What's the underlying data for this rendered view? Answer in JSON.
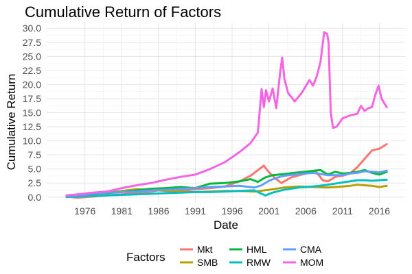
{
  "chart_data": {
    "type": "line",
    "title": "Cumulative Return of Factors",
    "xlabel": "Date",
    "ylabel": "Cumulative Return",
    "x_ticks": [
      "1976",
      "1981",
      "1986",
      "1991",
      "1996",
      "2001",
      "2006",
      "2011",
      "2016"
    ],
    "y_ticks": [
      "0.0",
      "2.5",
      "5.0",
      "7.5",
      "10.0",
      "12.5",
      "15.0",
      "17.5",
      "20.0",
      "22.5",
      "25.0",
      "27.5",
      "30.0"
    ],
    "xlim": [
      1970.8,
      2019.5
    ],
    "ylim": [
      -1.0,
      31.0
    ],
    "grid": true,
    "legend": {
      "title": "Factors",
      "position": "bottom",
      "entries": [
        "Mkt",
        "SMB",
        "HML",
        "RMW",
        "CMA",
        "MOM"
      ]
    },
    "series": [
      {
        "name": "Mkt",
        "color": "#F8766D",
        "x": [
          1973.5,
          1975,
          1977,
          1979,
          1981,
          1983,
          1985,
          1987,
          1987.8,
          1989,
          1991,
          1993,
          1995,
          1997,
          1998.5,
          1999.5,
          2000.3,
          2001,
          2002,
          2002.7,
          2004,
          2006,
          2007.3,
          2008.3,
          2009,
          2010,
          2011,
          2012,
          2013,
          2014,
          2015,
          2016,
          2016.5,
          2017
        ],
        "y": [
          0.1,
          -0.1,
          0.1,
          0.3,
          0.5,
          0.7,
          1.0,
          1.4,
          0.9,
          1.2,
          1.4,
          1.6,
          1.9,
          2.8,
          3.8,
          4.8,
          5.6,
          4.4,
          3.2,
          2.5,
          3.5,
          4.2,
          4.7,
          3.0,
          2.8,
          3.6,
          3.8,
          4.2,
          5.3,
          6.8,
          8.3,
          8.6,
          9.0,
          9.4
        ]
      },
      {
        "name": "SMB",
        "color": "#B79F00",
        "x": [
          1973.5,
          1975,
          1977,
          1979,
          1981,
          1983,
          1985,
          1987,
          1989,
          1991,
          1993,
          1995,
          1997,
          1999,
          2001,
          2003,
          2005,
          2007,
          2009,
          2011,
          2012,
          2013,
          2014,
          2015,
          2016,
          2017
        ],
        "y": [
          0.1,
          0.2,
          0.5,
          0.8,
          1.1,
          1.4,
          1.3,
          1.1,
          1.0,
          0.9,
          1.0,
          1.1,
          1.1,
          1.0,
          1.3,
          1.7,
          1.9,
          1.8,
          1.7,
          1.9,
          2.0,
          2.2,
          2.1,
          2.0,
          1.8,
          2.0
        ]
      },
      {
        "name": "HML",
        "color": "#00BA38",
        "x": [
          1973.5,
          1975,
          1977,
          1979,
          1981,
          1983,
          1985,
          1987,
          1989,
          1991,
          1993,
          1995,
          1997,
          1998.5,
          1999.5,
          2000.5,
          2001.5,
          2003,
          2005,
          2006.5,
          2008,
          2009,
          2010,
          2011,
          2012,
          2013,
          2014,
          2015,
          2016,
          2017
        ],
        "y": [
          0.1,
          0.3,
          0.6,
          0.7,
          0.9,
          1.2,
          1.5,
          1.6,
          1.8,
          1.6,
          2.4,
          2.5,
          2.8,
          3.2,
          2.7,
          3.5,
          3.9,
          4.1,
          4.4,
          4.6,
          4.8,
          4.0,
          4.5,
          4.2,
          4.3,
          4.5,
          4.8,
          4.3,
          4.0,
          4.5
        ]
      },
      {
        "name": "RMW",
        "color": "#00BFC4",
        "x": [
          1973.5,
          1975,
          1977,
          1979,
          1981,
          1983,
          1985,
          1987,
          1989,
          1991,
          1993,
          1995,
          1997,
          1999,
          2000.5,
          2001.5,
          2003,
          2005,
          2007,
          2009,
          2011,
          2012,
          2013,
          2014,
          2015,
          2016,
          2017
        ],
        "y": [
          0.0,
          0.1,
          0.2,
          0.3,
          0.4,
          0.5,
          0.6,
          0.7,
          0.8,
          0.9,
          0.9,
          1.0,
          1.1,
          1.2,
          0.3,
          0.8,
          1.3,
          1.7,
          1.9,
          2.2,
          2.6,
          2.8,
          3.0,
          3.0,
          2.9,
          3.0,
          3.1
        ]
      },
      {
        "name": "CMA",
        "color": "#619CFF",
        "x": [
          1973.5,
          1975,
          1977,
          1979,
          1981,
          1983,
          1985,
          1987,
          1989,
          1991,
          1993,
          1995,
          1997,
          1999,
          2000,
          2001,
          2002,
          2003,
          2005,
          2007,
          2009,
          2011,
          2012,
          2013,
          2014,
          2015,
          2016,
          2017
        ],
        "y": [
          0.1,
          0.3,
          0.6,
          0.8,
          0.9,
          1.0,
          1.2,
          1.3,
          1.5,
          1.6,
          1.8,
          1.9,
          2.0,
          1.7,
          2.1,
          2.9,
          3.4,
          3.8,
          4.1,
          4.3,
          3.9,
          3.9,
          4.2,
          4.3,
          4.6,
          4.5,
          4.4,
          4.7
        ]
      },
      {
        "name": "MOM",
        "color": "#F564E3",
        "x": [
          1973.5,
          1975,
          1977,
          1979,
          1981,
          1983,
          1985,
          1987,
          1989,
          1991,
          1993,
          1995,
          1997,
          1998.5,
          1999.5,
          2000,
          2000.3,
          2000.6,
          2001,
          2001.5,
          2002,
          2002.5,
          2002.8,
          2003.1,
          2003.6,
          2004.5,
          2005.5,
          2006.5,
          2007,
          2007.5,
          2008,
          2008.5,
          2008.9,
          2009.1,
          2009.4,
          2009.7,
          2010.2,
          2011,
          2012,
          2013,
          2013.5,
          2014,
          2014.5,
          2015,
          2015.4,
          2015.9,
          2016.3,
          2016.7,
          2017
        ],
        "y": [
          0.3,
          0.5,
          0.8,
          1.0,
          1.6,
          2.1,
          2.5,
          3.1,
          3.6,
          4.0,
          5.0,
          6.2,
          8.0,
          9.6,
          11.5,
          19.2,
          16.0,
          19.0,
          17.0,
          19.3,
          15.8,
          22.0,
          24.8,
          21.0,
          18.5,
          17.0,
          18.6,
          20.8,
          19.8,
          21.5,
          24.0,
          29.3,
          29.0,
          27.5,
          15.0,
          12.3,
          12.5,
          14.0,
          14.5,
          14.8,
          16.2,
          15.3,
          15.8,
          16.0,
          18.0,
          19.8,
          17.5,
          16.6,
          16.0
        ]
      }
    ]
  }
}
